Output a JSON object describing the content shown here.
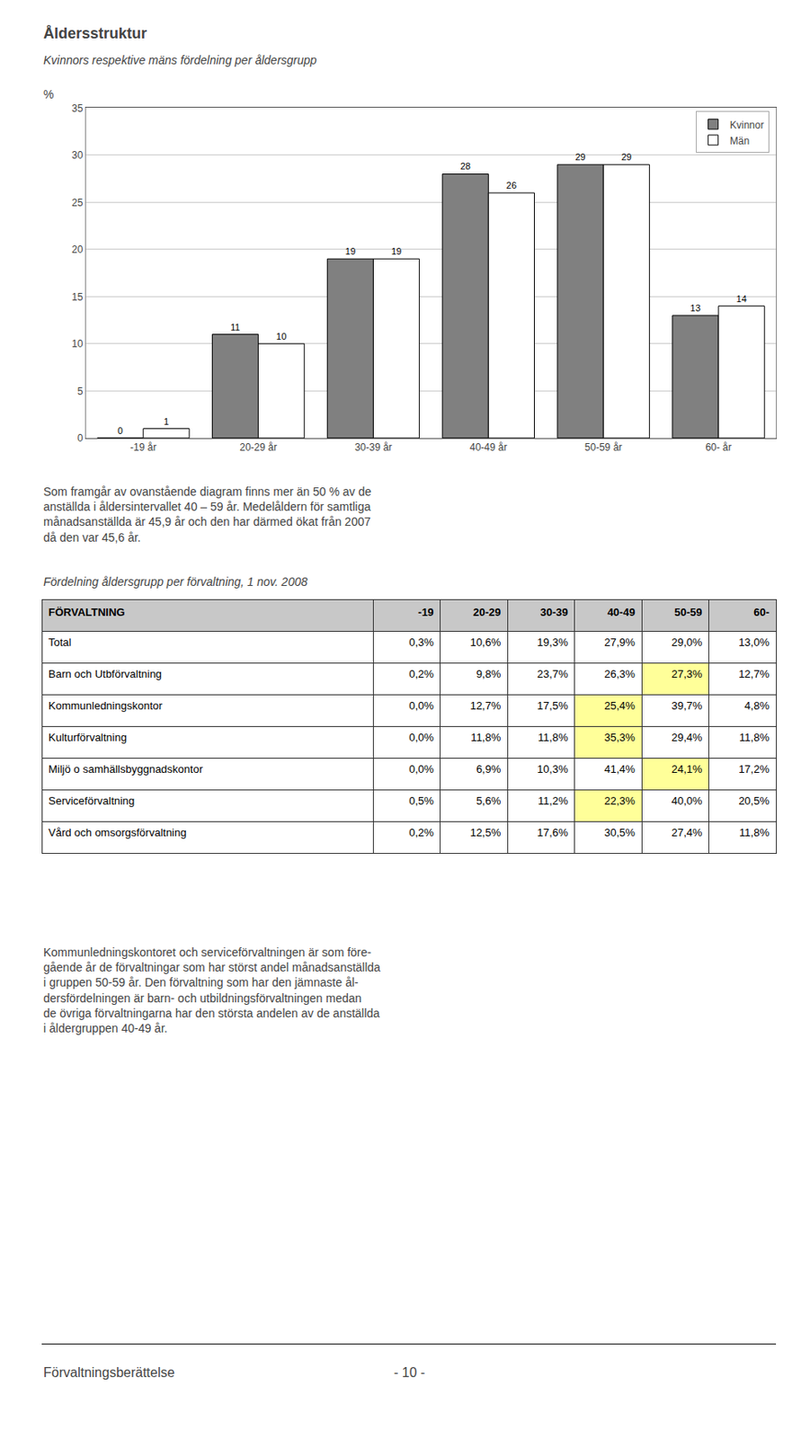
{
  "chart_data": [
    {
      "type": "bar",
      "title": "Åldersstruktur",
      "subtitle": "Kvinnors respektive mäns fördelning per åldersgrupp",
      "ylabel": "%",
      "categories": [
        "-19 år",
        "20-29 år",
        "30-39 år",
        "40-49 år",
        "50-59 år",
        "60- år"
      ],
      "series": [
        {
          "name": "Kvinnor",
          "color": "#808080",
          "values": [
            0,
            11,
            19,
            28,
            29,
            13
          ]
        },
        {
          "name": "Män",
          "color": "#ffffff",
          "values": [
            1,
            10,
            19,
            26,
            29,
            14
          ]
        }
      ],
      "ylim": [
        0,
        35
      ],
      "yticks": [
        0,
        5,
        10,
        15,
        20,
        25,
        30,
        35
      ],
      "grid": true,
      "legend": "upper right",
      "data_labels": true
    },
    {
      "type": "table",
      "title": "Fördelning åldersgrupp per förvaltning, 1 nov. 2008",
      "columns": [
        "FÖRVALTNING",
        "-19",
        "20-29",
        "30-39",
        "40-49",
        "50-59",
        "60-"
      ],
      "rows": [
        [
          "Total",
          "0,3%",
          "10,6%",
          "19,3%",
          "27,9%",
          "29,0%",
          "13,0%"
        ],
        [
          "Barn och Utbförvaltning",
          "0,2%",
          "9,8%",
          "23,7%",
          "26,3%",
          "27,3%",
          "12,7%"
        ],
        [
          "Kommunledningskontor",
          "0,0%",
          "12,7%",
          "17,5%",
          "25,4%",
          "39,7%",
          "4,8%"
        ],
        [
          "Kulturförvaltning",
          "0,0%",
          "11,8%",
          "11,8%",
          "35,3%",
          "29,4%",
          "11,8%"
        ],
        [
          "Miljö o samhällsbyggnadskontor",
          "0,0%",
          "6,9%",
          "10,3%",
          "41,4%",
          "24,1%",
          "17,2%"
        ],
        [
          "Serviceförvaltning",
          "0,5%",
          "5,6%",
          "11,2%",
          "22,3%",
          "40,0%",
          "20,5%"
        ],
        [
          "Vård och omsorgsförvaltning",
          "0,2%",
          "12,5%",
          "17,6%",
          "30,5%",
          "27,4%",
          "11,8%"
        ]
      ],
      "colors": [
        [
          "#ffffff",
          "#ffffff",
          "#ffffff",
          "#ffffff",
          "#ffffff",
          "#ffffff",
          "#ffffff"
        ],
        [
          "#ffffff",
          "#ffffff",
          "#ffffff",
          "#ffffff",
          "#ffffff",
          "#ffff99",
          "#ffffff"
        ],
        [
          "#ffffff",
          "#ffffff",
          "#ffffff",
          "#ffffff",
          "#ffff99",
          "#ffffff",
          "#ffffff"
        ],
        [
          "#ffffff",
          "#ffffff",
          "#ffffff",
          "#ffffff",
          "#ffff99",
          "#ffffff",
          "#ffffff"
        ],
        [
          "#ffffff",
          "#ffffff",
          "#ffffff",
          "#ffffff",
          "#ffffff",
          "#ffff99",
          "#ffffff"
        ],
        [
          "#ffffff",
          "#ffffff",
          "#ffffff",
          "#ffffff",
          "#ffff99",
          "#ffffff",
          "#ffffff"
        ],
        [
          "#ffffff",
          "#ffffff",
          "#ffffff",
          "#ffffff",
          "#ffffff",
          "#ffffff",
          "#ffffff"
        ]
      ]
    }
  ],
  "paragraphs": [
    [
      "Som framgår av ovanstående diagram finns mer än 50 % av de",
      "anställda i åldersintervallet 40 – 59 år. Medelåldern för samtliga",
      "månadsanställda är 45,9 år och den har därmed ökat från 2007",
      "då den var 45,6 år."
    ],
    [
      "Kommunledningskontoret och serviceförvaltningen är som före-",
      "gående år de förvaltningar som har störst andel månadsanställda",
      "i gruppen 50-59 år. Den förvaltning som har den jämnaste ål-",
      "dersfördelningen är barn- och utbildningsförvaltningen medan",
      "de övriga förvaltningarna har den största andelen av de anställda",
      "i åldergruppen 40-49 år."
    ]
  ],
  "footer": [
    "Förvaltningsberättelse",
    "- 10 -"
  ]
}
